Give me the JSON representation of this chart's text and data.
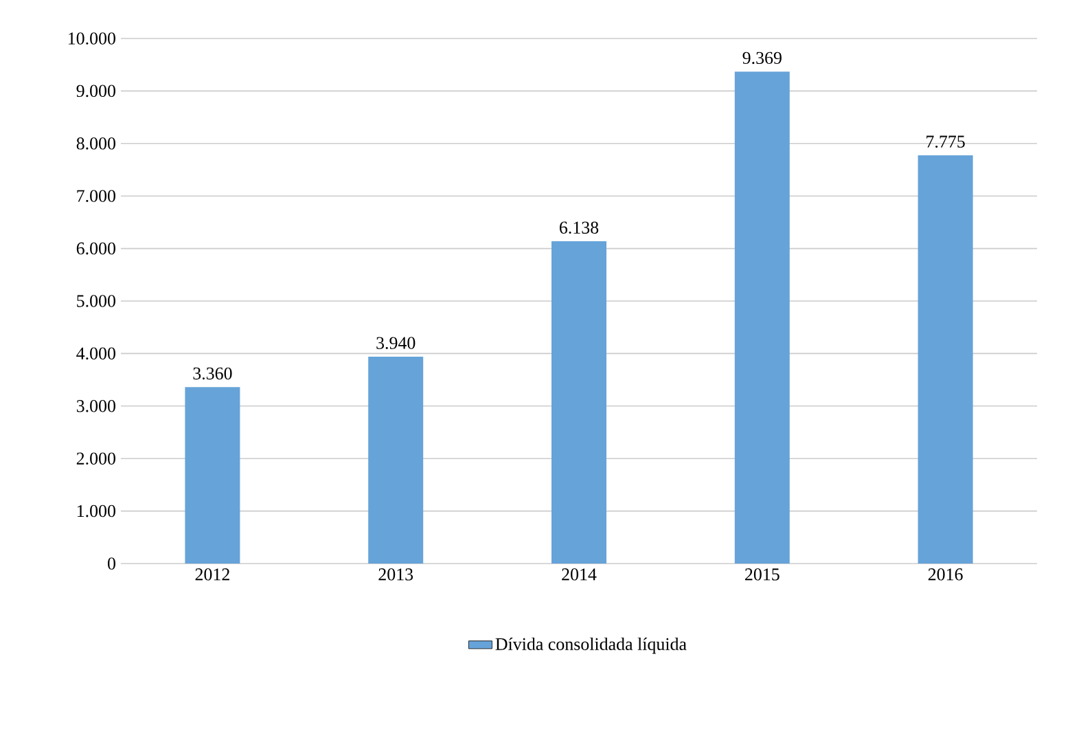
{
  "chart_data": {
    "type": "bar",
    "categories": [
      "2012",
      "2013",
      "2014",
      "2015",
      "2016"
    ],
    "series": [
      {
        "name": "Dívida consolidada líquida",
        "color": "#66a3d9",
        "values": [
          3360,
          3940,
          6138,
          9369,
          7775
        ],
        "value_labels": [
          "3.360",
          "3.940",
          "6.138",
          "9.369",
          "7.775"
        ]
      }
    ],
    "ylim": [
      0,
      10000
    ],
    "yticks": [
      0,
      {
        "value": 1000,
        "label": "1.000"
      },
      {
        "value": 2000,
        "label": "2.000"
      },
      {
        "value": 3000,
        "label": "3.000"
      },
      {
        "value": 4000,
        "label": "4.000"
      },
      {
        "value": 5000,
        "label": "5.000"
      },
      {
        "value": 6000,
        "label": "6.000"
      },
      {
        "value": 7000,
        "label": "7.000"
      },
      {
        "value": 8000,
        "label": "8.000"
      },
      {
        "value": 9000,
        "label": "9.000"
      },
      {
        "value": 10000,
        "label": "10.000"
      }
    ],
    "grid": "y",
    "legend": "bottom"
  }
}
